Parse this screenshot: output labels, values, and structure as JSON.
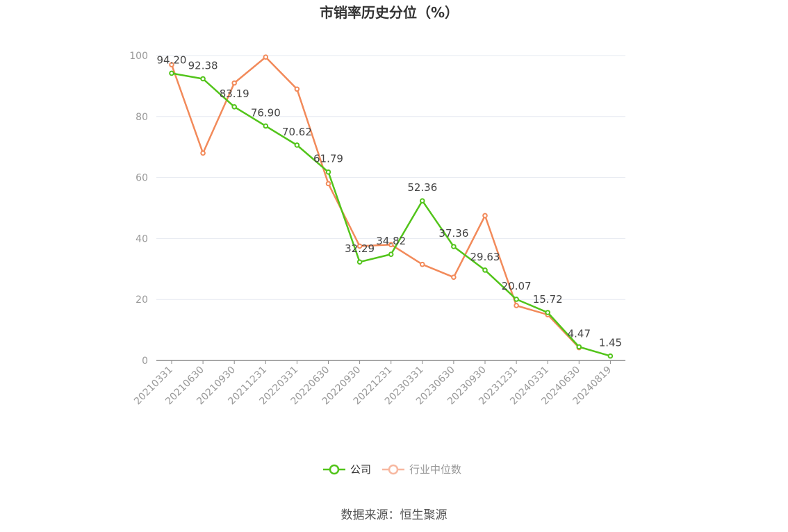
{
  "chart_data": {
    "type": "line",
    "title": "市销率历史分位（%）",
    "categories": [
      "20210331",
      "20210630",
      "20210930",
      "20211231",
      "20220331",
      "20220630",
      "20220930",
      "20221231",
      "20230331",
      "20230630",
      "20230930",
      "20231231",
      "20240331",
      "20240630",
      "20240819"
    ],
    "ylim": [
      0,
      100
    ],
    "yticks": [
      0,
      20,
      40,
      60,
      80,
      100
    ],
    "grid": true,
    "legend_position": "bottom",
    "series": [
      {
        "name": "公司",
        "color": "#52c41a",
        "values": [
          94.2,
          92.38,
          83.19,
          76.9,
          70.62,
          61.79,
          32.29,
          34.82,
          52.36,
          37.36,
          29.63,
          20.07,
          15.72,
          4.47,
          1.45
        ],
        "labels": [
          "94.20",
          "92.38",
          "83.19",
          "76.90",
          "70.62",
          "61.79",
          "32.29",
          "34.82",
          "52.36",
          "37.36",
          "29.63",
          "20.07",
          "15.72",
          "4.47",
          "1.45"
        ]
      },
      {
        "name": "行业中位数",
        "color": "#f28a5a",
        "values": [
          97,
          68,
          91,
          99.5,
          89,
          58,
          37.5,
          38,
          31.5,
          27.3,
          47.5,
          18,
          15,
          4.2,
          null
        ]
      }
    ]
  },
  "source": "数据来源：恒生聚源"
}
